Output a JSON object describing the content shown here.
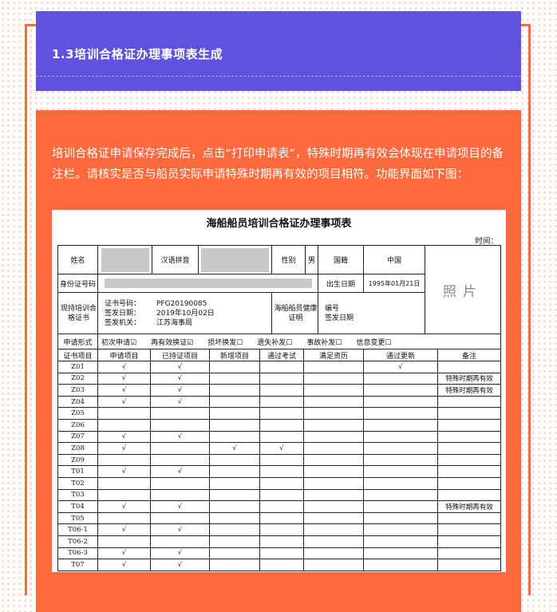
{
  "section": {
    "title": "1.3培训合格证办理事项表生成"
  },
  "intro": "培训合格证申请保存完成后，点击“打印申请表”，特殊时期再有效会体现在申请项目的备注栏。请核实是否与船员实际申请特殊时期再有效的项目相符。功能界面如下图：",
  "form": {
    "title": "海船船员培训合格证办理事项表",
    "time_label": "时间：",
    "name_label": "姓名",
    "pinyin_label": "汉语拼音",
    "gender_label": "性别",
    "gender": "男",
    "nationality_label": "国籍",
    "nationality": "中国",
    "photo": "照片",
    "id_label": "身份证号码",
    "birth_label": "出生日期",
    "birth": "1995年01月21日",
    "cert_label": "现持培训合格证书",
    "cert_no_label": "证书号码：",
    "cert_no": "PFG20190085",
    "issue_date_label": "签发日期：",
    "issue_date": "2019年10月02日",
    "issuer_label": "签发机关：",
    "issuer": "江苏海事局",
    "health_label": "海船船员健康证明",
    "health_no_label": "编号",
    "health_date_label": "签发日期",
    "apply_label": "申请形式",
    "apply_options": [
      {
        "label": "初次申请",
        "checked": true
      },
      {
        "label": "再有效换证",
        "checked": true
      },
      {
        "label": "损坏换发",
        "checked": false
      },
      {
        "label": "遗失补发",
        "checked": false
      },
      {
        "label": "事故补发",
        "checked": false
      },
      {
        "label": "信息变更",
        "checked": false
      }
    ],
    "columns": [
      "证书项目",
      "申请项目",
      "已持证项目",
      "新增项目",
      "通过考试",
      "满足资历",
      "通过更新",
      "备注"
    ],
    "rows": [
      [
        "Z01",
        "√",
        "√",
        "",
        "",
        "",
        "√",
        ""
      ],
      [
        "Z02",
        "√",
        "√",
        "",
        "",
        "",
        "",
        "特殊时期再有效"
      ],
      [
        "Z03",
        "√",
        "√",
        "",
        "",
        "",
        "",
        "特殊时期再有效"
      ],
      [
        "Z04",
        "√",
        "√",
        "",
        "",
        "",
        "",
        ""
      ],
      [
        "Z05",
        "",
        "",
        "",
        "",
        "",
        "",
        ""
      ],
      [
        "Z06",
        "",
        "",
        "",
        "",
        "",
        "",
        ""
      ],
      [
        "Z07",
        "√",
        "√",
        "",
        "",
        "",
        "",
        ""
      ],
      [
        "Z08",
        "√",
        "",
        "√",
        "√",
        "",
        "",
        ""
      ],
      [
        "Z09",
        "",
        "",
        "",
        "",
        "",
        "",
        ""
      ],
      [
        "T01",
        "√",
        "√",
        "",
        "",
        "",
        "",
        ""
      ],
      [
        "T02",
        "",
        "",
        "",
        "",
        "",
        "",
        ""
      ],
      [
        "T03",
        "",
        "",
        "",
        "",
        "",
        "",
        ""
      ],
      [
        "T04",
        "√",
        "√",
        "",
        "",
        "",
        "",
        "特殊时期再有效"
      ],
      [
        "T05",
        "",
        "",
        "",
        "",
        "",
        "",
        ""
      ],
      [
        "T06-1",
        "√",
        "√",
        "",
        "",
        "",
        "",
        ""
      ],
      [
        "T06-2",
        "",
        "",
        "",
        "",
        "",
        "",
        ""
      ],
      [
        "T06-3",
        "√",
        "√",
        "",
        "",
        "",
        "",
        ""
      ],
      [
        "T07",
        "√",
        "√",
        "",
        "",
        "",
        "",
        ""
      ]
    ]
  }
}
